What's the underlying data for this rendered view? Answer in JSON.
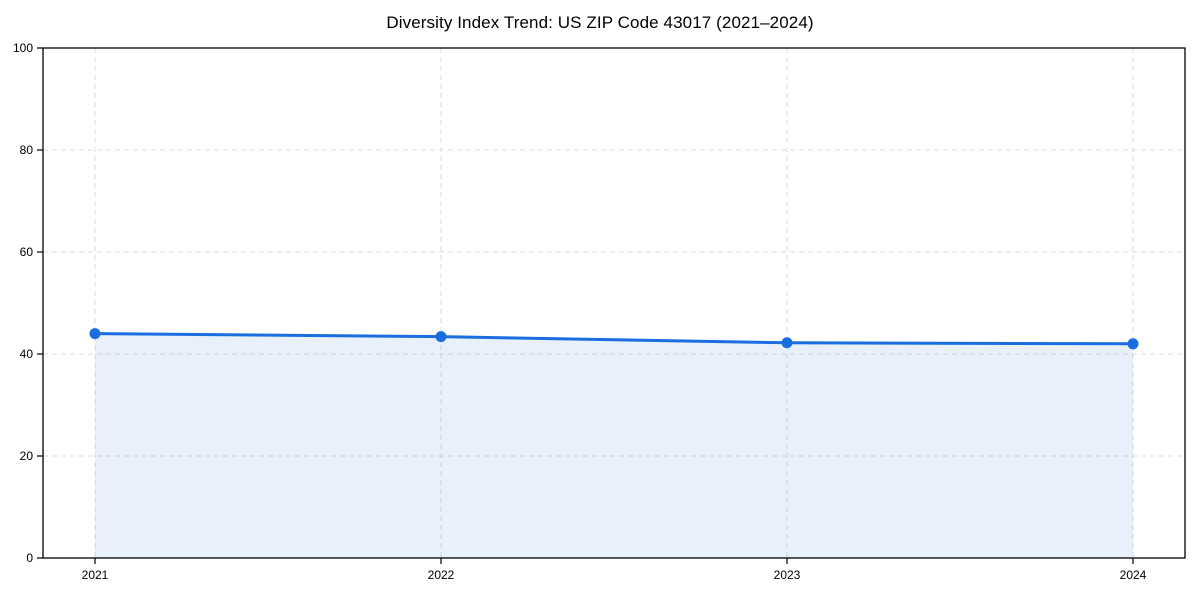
{
  "chart_data": {
    "type": "area",
    "title": "Diversity Index Trend: US ZIP Code 43017 (2021–2024)",
    "x": [
      "2021",
      "2022",
      "2023",
      "2024"
    ],
    "series": [
      {
        "name": "Diversity Index",
        "values": [
          44.0,
          43.4,
          42.2,
          42.0
        ]
      }
    ],
    "xlabel": "",
    "ylabel": "",
    "ylim": [
      0,
      100
    ],
    "yticks": [
      0,
      20,
      40,
      60,
      80,
      100
    ],
    "grid": true,
    "grid_style": "dashed",
    "legend_position": "none",
    "colors": {
      "line": "#1a6ee0",
      "marker": "#1a6ee0",
      "fill": "rgba(26,110,224,0.10)",
      "grid": "#dcdcdc",
      "axis": "#000000",
      "tick_text": "#000000",
      "background": "#ffffff"
    }
  }
}
